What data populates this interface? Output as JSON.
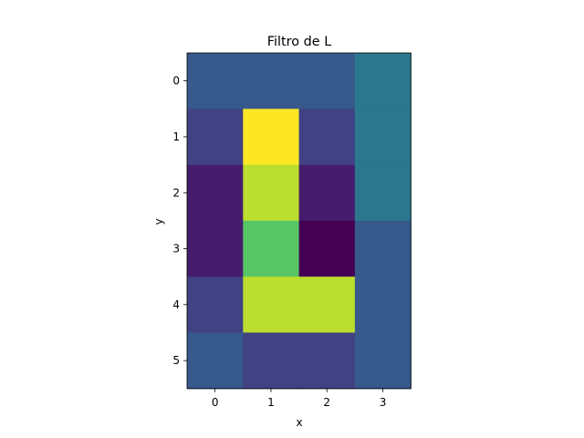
{
  "chart_data": {
    "type": "heatmap",
    "title": "Filtro de L",
    "xlabel": "x",
    "ylabel": "y",
    "x_ticks": [
      "0",
      "1",
      "2",
      "3"
    ],
    "y_ticks": [
      "0",
      "1",
      "2",
      "3",
      "4",
      "5"
    ],
    "colormap": "viridis",
    "color_range": [
      0,
      1
    ],
    "grid": false,
    "values": [
      [
        0.28,
        0.28,
        0.28,
        0.4
      ],
      [
        0.2,
        1.0,
        0.2,
        0.4
      ],
      [
        0.08,
        0.9,
        0.08,
        0.4
      ],
      [
        0.08,
        0.74,
        0.0,
        0.28
      ],
      [
        0.2,
        0.9,
        0.9,
        0.28
      ],
      [
        0.28,
        0.2,
        0.2,
        0.28
      ]
    ]
  }
}
